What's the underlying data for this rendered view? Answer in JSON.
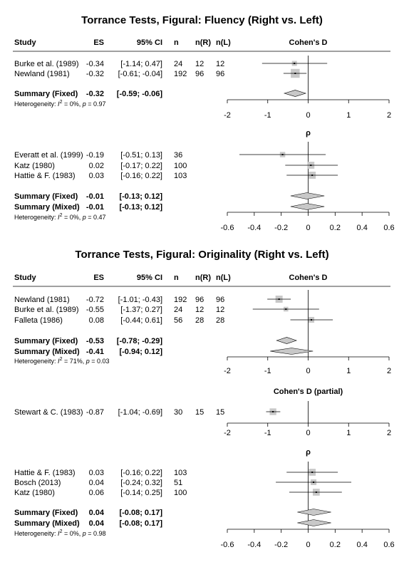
{
  "chart_data": [
    {
      "type": "forest",
      "title": "Torrance Tests, Figural: Fluency (Right vs. Left)",
      "panels": [
        {
          "headers": {
            "study": "Study",
            "es": "ES",
            "ci": "95% CI",
            "n": "n",
            "nr": "n(R)",
            "nl": "n(L)",
            "axis_label": "Cohen's D"
          },
          "xlim": [
            -2,
            2
          ],
          "ticks": [
            "-2",
            "-1",
            "0",
            "1",
            "2"
          ],
          "studies": [
            {
              "label": "Burke et al. (1989)",
              "es": -0.34,
              "lo": -1.14,
              "hi": 0.47,
              "es_text": "-0.34",
              "ci_text": "[-1.14; 0.47]",
              "n": "24",
              "nr": "12",
              "nl": "12",
              "weight": 0.11
            },
            {
              "label": "Newland (1981)",
              "es": -0.32,
              "lo": -0.61,
              "hi": -0.04,
              "es_text": "-0.32",
              "ci_text": "[-0.61; -0.04]",
              "n": "192",
              "nr": "96",
              "nl": "96",
              "weight": 0.89
            }
          ],
          "summaries": [
            {
              "label": "Summary (Fixed)",
              "es": -0.32,
              "lo": -0.59,
              "hi": -0.06,
              "es_text": "-0.32",
              "ci_text": "[-0.59; -0.06]"
            }
          ],
          "heterogeneity": {
            "prefix": "Heterogeneity: ",
            "i2_label": "I",
            "i2_sup": "2",
            "i2_rest": " = 0%, ",
            "p_label": "p",
            "p_rest": " = 0.97"
          }
        },
        {
          "headers": {
            "study": "",
            "es": "",
            "ci": "",
            "n": "",
            "nr": "",
            "nl": "",
            "axis_label": "ρ"
          },
          "xlim": [
            -0.6,
            0.6
          ],
          "ticks": [
            "-0.6",
            "-0.4",
            "-0.2",
            "0",
            "0.2",
            "0.4",
            "0.6"
          ],
          "studies": [
            {
              "label": "Everatt et al. (1999)",
              "es": -0.19,
              "lo": -0.51,
              "hi": 0.13,
              "es_text": "-0.19",
              "ci_text": "[-0.51; 0.13]",
              "n": "36",
              "nr": "",
              "nl": "",
              "weight": 0.15
            },
            {
              "label": "Katz (1980)",
              "es": 0.02,
              "lo": -0.17,
              "hi": 0.22,
              "es_text": "0.02",
              "ci_text": "[-0.17; 0.22]",
              "n": "100",
              "nr": "",
              "nl": "",
              "weight": 0.42
            },
            {
              "label": "Hattie & F. (1983)",
              "es": 0.03,
              "lo": -0.16,
              "hi": 0.22,
              "es_text": "0.03",
              "ci_text": "[-0.16; 0.22]",
              "n": "103",
              "nr": "",
              "nl": "",
              "weight": 0.43
            }
          ],
          "summaries": [
            {
              "label": "Summary (Fixed)",
              "es": -0.01,
              "lo": -0.13,
              "hi": 0.12,
              "es_text": "-0.01",
              "ci_text": "[-0.13; 0.12]"
            },
            {
              "label": "Summary (Mixed)",
              "es": -0.01,
              "lo": -0.13,
              "hi": 0.12,
              "es_text": "-0.01",
              "ci_text": "[-0.13; 0.12]"
            }
          ],
          "heterogeneity": {
            "prefix": "Heterogeneity: ",
            "i2_label": "I",
            "i2_sup": "2",
            "i2_rest": " = 0%, ",
            "p_label": "p",
            "p_rest": " = 0.47"
          }
        }
      ]
    },
    {
      "type": "forest",
      "title": "Torrance Tests, Figural: Originality (Right vs. Left)",
      "panels": [
        {
          "headers": {
            "study": "Study",
            "es": "ES",
            "ci": "95% CI",
            "n": "n",
            "nr": "n(R)",
            "nl": "n(L)",
            "axis_label": "Cohen's D"
          },
          "xlim": [
            -2,
            2
          ],
          "ticks": [
            "-2",
            "-1",
            "0",
            "1",
            "2"
          ],
          "studies": [
            {
              "label": "Newland (1981)",
              "es": -0.72,
              "lo": -1.01,
              "hi": -0.43,
              "es_text": "-0.72",
              "ci_text": "[-1.01; -0.43]",
              "n": "192",
              "nr": "96",
              "nl": "96",
              "weight": 0.44
            },
            {
              "label": "Burke et al. (1989)",
              "es": -0.55,
              "lo": -1.37,
              "hi": 0.27,
              "es_text": "-0.55",
              "ci_text": "[-1.37; 0.27]",
              "n": "24",
              "nr": "12",
              "nl": "12",
              "weight": 0.08
            },
            {
              "label": "Falleta (1986)",
              "es": 0.08,
              "lo": -0.44,
              "hi": 0.61,
              "es_text": "0.08",
              "ci_text": "[-0.44; 0.61]",
              "n": "56",
              "nr": "28",
              "nl": "28",
              "weight": 0.2
            }
          ],
          "summaries": [
            {
              "label": "Summary (Fixed)",
              "es": -0.53,
              "lo": -0.78,
              "hi": -0.29,
              "es_text": "-0.53",
              "ci_text": "[-0.78; -0.29]"
            },
            {
              "label": "Summary (Mixed)",
              "es": -0.41,
              "lo": -0.94,
              "hi": 0.12,
              "es_text": "-0.41",
              "ci_text": "[-0.94; 0.12]"
            }
          ],
          "heterogeneity": {
            "prefix": "Heterogeneity: ",
            "i2_label": "I",
            "i2_sup": "2",
            "i2_rest": " = 71%, ",
            "p_label": "p",
            "p_rest": " = 0.03"
          }
        },
        {
          "headers": {
            "study": "",
            "es": "",
            "ci": "",
            "n": "",
            "nr": "",
            "nl": "",
            "axis_label": "Cohen's D (partial)"
          },
          "xlim": [
            -2,
            2
          ],
          "ticks": [
            "-2",
            "-1",
            "0",
            "1",
            "2"
          ],
          "studies": [
            {
              "label": "Stewart & C. (1983)",
              "es": -0.87,
              "lo": -1.04,
              "hi": -0.69,
              "es_text": "-0.87",
              "ci_text": "[-1.04; -0.69]",
              "n": "30",
              "nr": "15",
              "nl": "15",
              "weight": 0.35
            }
          ],
          "summaries": [],
          "heterogeneity": null
        },
        {
          "headers": {
            "study": "",
            "es": "",
            "ci": "",
            "n": "",
            "nr": "",
            "nl": "",
            "axis_label": "ρ"
          },
          "xlim": [
            -0.6,
            0.6
          ],
          "ticks": [
            "-0.6",
            "-0.4",
            "-0.2",
            "0",
            "0.2",
            "0.4",
            "0.6"
          ],
          "studies": [
            {
              "label": "Hattie & F. (1983)",
              "es": 0.03,
              "lo": -0.16,
              "hi": 0.22,
              "es_text": "0.03",
              "ci_text": "[-0.16; 0.22]",
              "n": "103",
              "nr": "",
              "nl": "",
              "weight": 0.4
            },
            {
              "label": "Bosch (2013)",
              "es": 0.04,
              "lo": -0.24,
              "hi": 0.32,
              "es_text": "0.04",
              "ci_text": "[-0.24; 0.32]",
              "n": "51",
              "nr": "",
              "nl": "",
              "weight": 0.2
            },
            {
              "label": "Katz (1980)",
              "es": 0.06,
              "lo": -0.14,
              "hi": 0.25,
              "es_text": "0.06",
              "ci_text": "[-0.14; 0.25]",
              "n": "100",
              "nr": "",
              "nl": "",
              "weight": 0.4
            }
          ],
          "summaries": [
            {
              "label": "Summary (Fixed)",
              "es": 0.04,
              "lo": -0.08,
              "hi": 0.17,
              "es_text": "0.04",
              "ci_text": "[-0.08; 0.17]"
            },
            {
              "label": "Summary (Mixed)",
              "es": 0.04,
              "lo": -0.08,
              "hi": 0.17,
              "es_text": "0.04",
              "ci_text": "[-0.08; 0.17]"
            }
          ],
          "heterogeneity": {
            "prefix": "Heterogeneity: ",
            "i2_label": "I",
            "i2_sup": "2",
            "i2_rest": " = 0%, ",
            "p_label": "p",
            "p_rest": " = 0.98"
          }
        }
      ]
    }
  ]
}
